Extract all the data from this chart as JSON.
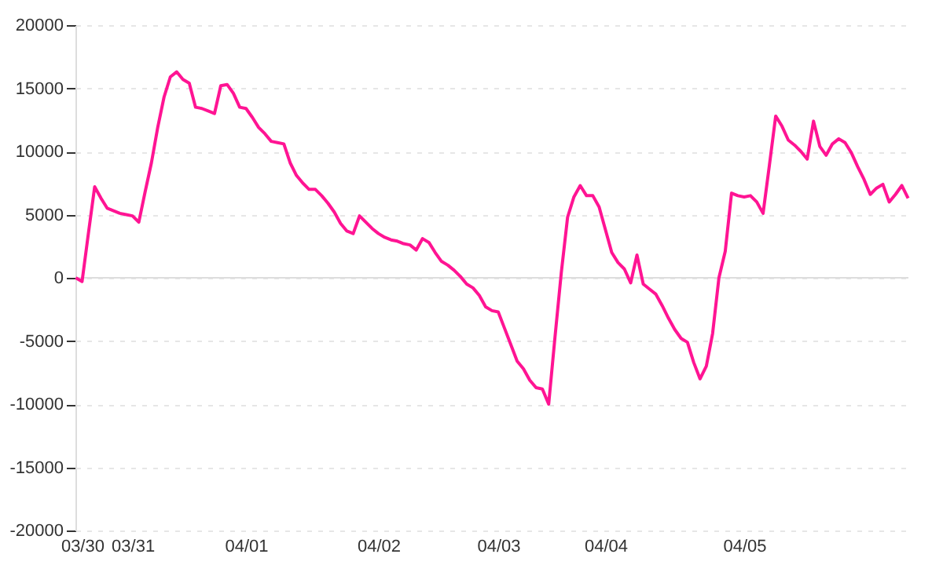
{
  "chart_data": {
    "type": "line",
    "categories": [
      null,
      "03/30",
      null,
      null,
      null,
      null,
      null,
      null,
      null,
      "03/31",
      null,
      null,
      null,
      null,
      null,
      null,
      null,
      null,
      null,
      null,
      null,
      null,
      null,
      null,
      null,
      null,
      null,
      "04/01",
      null,
      null,
      null,
      null,
      null,
      null,
      null,
      null,
      null,
      null,
      null,
      null,
      null,
      null,
      null,
      null,
      null,
      null,
      null,
      null,
      "04/02",
      null,
      null,
      null,
      null,
      null,
      null,
      null,
      null,
      null,
      null,
      null,
      null,
      null,
      null,
      null,
      null,
      null,
      null,
      "04/03",
      null,
      null,
      null,
      null,
      null,
      null,
      null,
      null,
      null,
      null,
      null,
      null,
      null,
      null,
      null,
      null,
      "04/04",
      null,
      null,
      null,
      null,
      null,
      null,
      null,
      null,
      null,
      null,
      null,
      null,
      null,
      null,
      null,
      null,
      null,
      null,
      null,
      null,
      null,
      "04/05",
      null,
      null,
      null,
      null,
      null,
      null,
      null,
      null,
      null,
      null,
      null,
      null,
      null,
      null,
      null,
      null,
      null,
      null,
      null,
      null,
      null,
      null,
      null,
      null,
      null,
      null
    ],
    "series": [
      {
        "color": "#ff1493",
        "values": [
          0,
          -300,
          3500,
          7200,
          6300,
          5500,
          5300,
          5100,
          5000,
          4900,
          4400,
          6800,
          9100,
          11900,
          14300,
          15900,
          16300,
          15700,
          15400,
          13500,
          13400,
          13200,
          13000,
          15200,
          15300,
          14600,
          13500,
          13400,
          12700,
          11900,
          11400,
          10800,
          10700,
          10600,
          9100,
          8100,
          7500,
          7000,
          7000,
          6500,
          5900,
          5200,
          4300,
          3700,
          3500,
          4900,
          4400,
          3900,
          3500,
          3200,
          3000,
          2900,
          2700,
          2600,
          2200,
          3100,
          2800,
          2000,
          1300,
          1000,
          600,
          100,
          -500,
          -800,
          -1400,
          -2300,
          -2600,
          -2700,
          -4000,
          -5300,
          -6600,
          -7200,
          -8100,
          -8700,
          -8800,
          -10000,
          -4700,
          400,
          4800,
          6400,
          7300,
          6500,
          6500,
          5600,
          3800,
          2000,
          1200,
          700,
          -400,
          1800,
          -500,
          -900,
          -1300,
          -2200,
          -3200,
          -4100,
          -4800,
          -5100,
          -6700,
          -8000,
          -7000,
          -4400,
          0,
          2100,
          6700,
          6500,
          6400,
          6500,
          6000,
          5100,
          8900,
          12800,
          12000,
          10900,
          10500,
          10000,
          9400,
          12400,
          10400,
          9700,
          10600,
          11000,
          10700,
          9900,
          8800,
          7800,
          6600,
          7100,
          7400,
          6000,
          6600,
          7300,
          6300
        ]
      }
    ],
    "ylim": [
      -20000,
      20000
    ],
    "yticks": [
      -20000,
      -15000,
      -10000,
      -5000,
      0,
      5000,
      10000,
      15000,
      20000
    ],
    "grid": "y",
    "ref_lines": [
      {
        "axis": "y",
        "value": 0,
        "color": "#dddddd"
      }
    ],
    "marker": "none",
    "line_style": "solid"
  }
}
